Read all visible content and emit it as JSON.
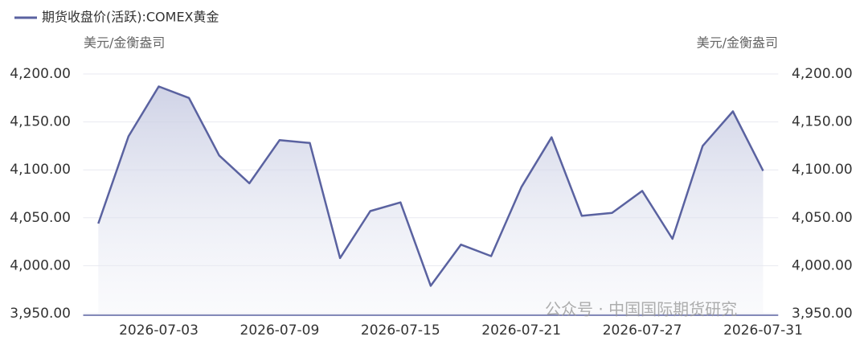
{
  "chart_data": {
    "type": "line",
    "legend_label": "期货收盘价(活跃):COMEX黄金",
    "y_label": "美元/金衡盎司",
    "y2_label": "美元/金衡盎司",
    "watermark": "公众号 · 中国国际期货研究",
    "categories": [
      null,
      null,
      "2026-07-03",
      null,
      null,
      null,
      "2026-07-09",
      null,
      null,
      null,
      "2026-07-15",
      null,
      null,
      null,
      "2026-07-21",
      null,
      null,
      null,
      "2026-07-27",
      null,
      null,
      null,
      "2026-07-31"
    ],
    "series": [
      {
        "name": "期货收盘价(活跃):COMEX黄金",
        "color": "#5a62a0",
        "values": [
          4044,
          4135,
          4187,
          4175,
          4115,
          4086,
          4131,
          4128,
          4008,
          4057,
          4066,
          3979,
          4022,
          4010,
          4082,
          4134,
          4052,
          4055,
          4078,
          4028,
          4125,
          4161,
          4099
        ]
      }
    ],
    "ylim": [
      3950,
      4200
    ],
    "yticks": [
      {
        "value": 3950,
        "label": "3,950.00"
      },
      {
        "value": 4000,
        "label": "4,000.00"
      },
      {
        "value": 4050,
        "label": "4,050.00"
      },
      {
        "value": 4100,
        "label": "4,100.00"
      },
      {
        "value": 4150,
        "label": "4,150.00"
      },
      {
        "value": 4200,
        "label": "4,200.00"
      }
    ],
    "y2lim": [
      3950,
      4200
    ],
    "y2ticks": [
      {
        "value": 3950,
        "label": "3,950.00"
      },
      {
        "value": 4000,
        "label": "4,000.00"
      },
      {
        "value": 4050,
        "label": "4,050.00"
      },
      {
        "value": 4100,
        "label": "4,100.00"
      },
      {
        "value": 4150,
        "label": "4,150.00"
      },
      {
        "value": 4200,
        "label": "4,200.00"
      }
    ],
    "grid": true,
    "area_fill": true
  }
}
